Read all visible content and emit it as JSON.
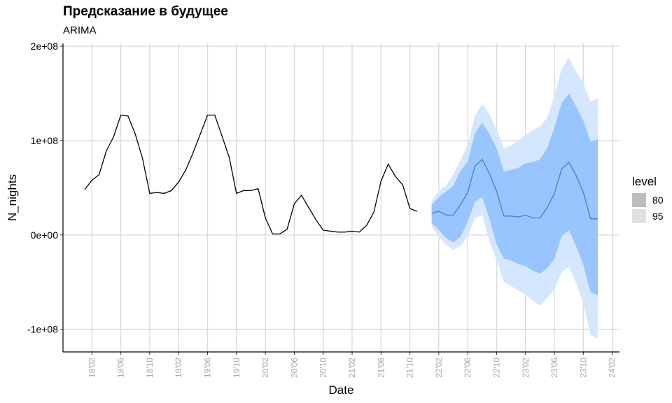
{
  "title": "Предсказание в будущее",
  "subtitle": "ARIMA",
  "chart_data": {
    "type": "line",
    "xlabel": "Date",
    "ylabel": "N_nights",
    "x_tick_labels": [
      "18'02",
      "18'06",
      "18'10",
      "19'02",
      "19'06",
      "19'10",
      "20'02",
      "20'06",
      "20'10",
      "21'02",
      "21'06",
      "21'10",
      "22'02",
      "22'06",
      "22'10",
      "23'02",
      "23'06",
      "23'10",
      "24'02"
    ],
    "y_tick_labels": [
      "2e+08",
      "1e+08",
      "0e+00",
      "-1e+08"
    ],
    "y_tick_values": [
      200000000,
      100000000,
      0,
      -100000000
    ],
    "ylim": [
      -124000000,
      203000000
    ],
    "x_range_months": [
      "2017-10",
      "2024-03"
    ],
    "grid": true,
    "legend": {
      "title": "level",
      "position": "right",
      "entries": [
        {
          "label": "80",
          "color": "#bdbdbd"
        },
        {
          "label": "95",
          "color": "#e0e0e0"
        }
      ]
    },
    "colors": {
      "history": "#000000",
      "forecast": "#3f7ed6",
      "band80": "#99c5ff",
      "band95": "#d4e7ff"
    },
    "history": {
      "name": "N_nights",
      "x": [
        "2018-01",
        "2018-02",
        "2018-03",
        "2018-04",
        "2018-05",
        "2018-06",
        "2018-07",
        "2018-08",
        "2018-09",
        "2018-10",
        "2018-11",
        "2018-12",
        "2019-01",
        "2019-02",
        "2019-03",
        "2019-04",
        "2019-05",
        "2019-06",
        "2019-07",
        "2019-08",
        "2019-09",
        "2019-10",
        "2019-11",
        "2019-12",
        "2020-01",
        "2020-02",
        "2020-03",
        "2020-04",
        "2020-05",
        "2020-06",
        "2020-07",
        "2020-08",
        "2020-09",
        "2020-10",
        "2020-11",
        "2020-12",
        "2021-01",
        "2021-02",
        "2021-03",
        "2021-04",
        "2021-05",
        "2021-06",
        "2021-07",
        "2021-08",
        "2021-09",
        "2021-10",
        "2021-11"
      ],
      "y": [
        48000000,
        58000000,
        64000000,
        89000000,
        104000000,
        127000000,
        126000000,
        107000000,
        81000000,
        44000000,
        45000000,
        44000000,
        47000000,
        56000000,
        69000000,
        87000000,
        107000000,
        127000000,
        127000000,
        105000000,
        82000000,
        44000000,
        47000000,
        47000000,
        49000000,
        18000000,
        1000000,
        1000000,
        6000000,
        33000000,
        42000000,
        29000000,
        16000000,
        5000000,
        4000000,
        3000000,
        3000000,
        4000000,
        3000000,
        10000000,
        24000000,
        57000000,
        75000000,
        62000000,
        53000000,
        28000000,
        25000000
      ]
    },
    "forecast": {
      "x": [
        "2022-01",
        "2022-02",
        "2022-03",
        "2022-04",
        "2022-05",
        "2022-06",
        "2022-07",
        "2022-08",
        "2022-09",
        "2022-10",
        "2022-11",
        "2022-12",
        "2023-01",
        "2023-02",
        "2023-03",
        "2023-04",
        "2023-05",
        "2023-06",
        "2023-07",
        "2023-08",
        "2023-09",
        "2023-10",
        "2023-11",
        "2023-12"
      ],
      "mean": [
        23000000,
        25000000,
        21000000,
        21000000,
        32000000,
        45000000,
        73000000,
        80000000,
        65000000,
        46000000,
        20000000,
        20000000,
        19000000,
        21000000,
        18000000,
        18000000,
        29000000,
        44000000,
        70000000,
        77000000,
        63000000,
        45000000,
        17000000,
        17000000
      ],
      "lo80": [
        13000000,
        5000000,
        -3000000,
        -8000000,
        -2000000,
        14000000,
        35000000,
        40000000,
        17000000,
        -10000000,
        -25000000,
        -27000000,
        -31000000,
        -33000000,
        -38000000,
        -41000000,
        -35000000,
        -25000000,
        -1000000,
        5000000,
        -12000000,
        -32000000,
        -61000000,
        -64000000
      ],
      "hi80": [
        32000000,
        40000000,
        46000000,
        52000000,
        68000000,
        78000000,
        108000000,
        119000000,
        107000000,
        92000000,
        67000000,
        69000000,
        71000000,
        76000000,
        77000000,
        80000000,
        92000000,
        114000000,
        140000000,
        150000000,
        136000000,
        121000000,
        99000000,
        101000000
      ],
      "lo95": [
        9000000,
        -2000000,
        -10000000,
        -16000000,
        -12000000,
        -1000000,
        18000000,
        21000000,
        -7000000,
        -27000000,
        -50000000,
        -54000000,
        -59000000,
        -63000000,
        -70000000,
        -75000000,
        -67000000,
        -58000000,
        -39000000,
        -34000000,
        -51000000,
        -73000000,
        -106000000,
        -110000000
      ],
      "hi95": [
        36000000,
        47000000,
        52000000,
        64000000,
        79000000,
        96000000,
        126000000,
        139000000,
        128000000,
        111000000,
        92000000,
        95000000,
        100000000,
        106000000,
        111000000,
        115000000,
        124000000,
        148000000,
        176000000,
        188000000,
        173000000,
        161000000,
        141000000,
        145000000
      ]
    }
  }
}
